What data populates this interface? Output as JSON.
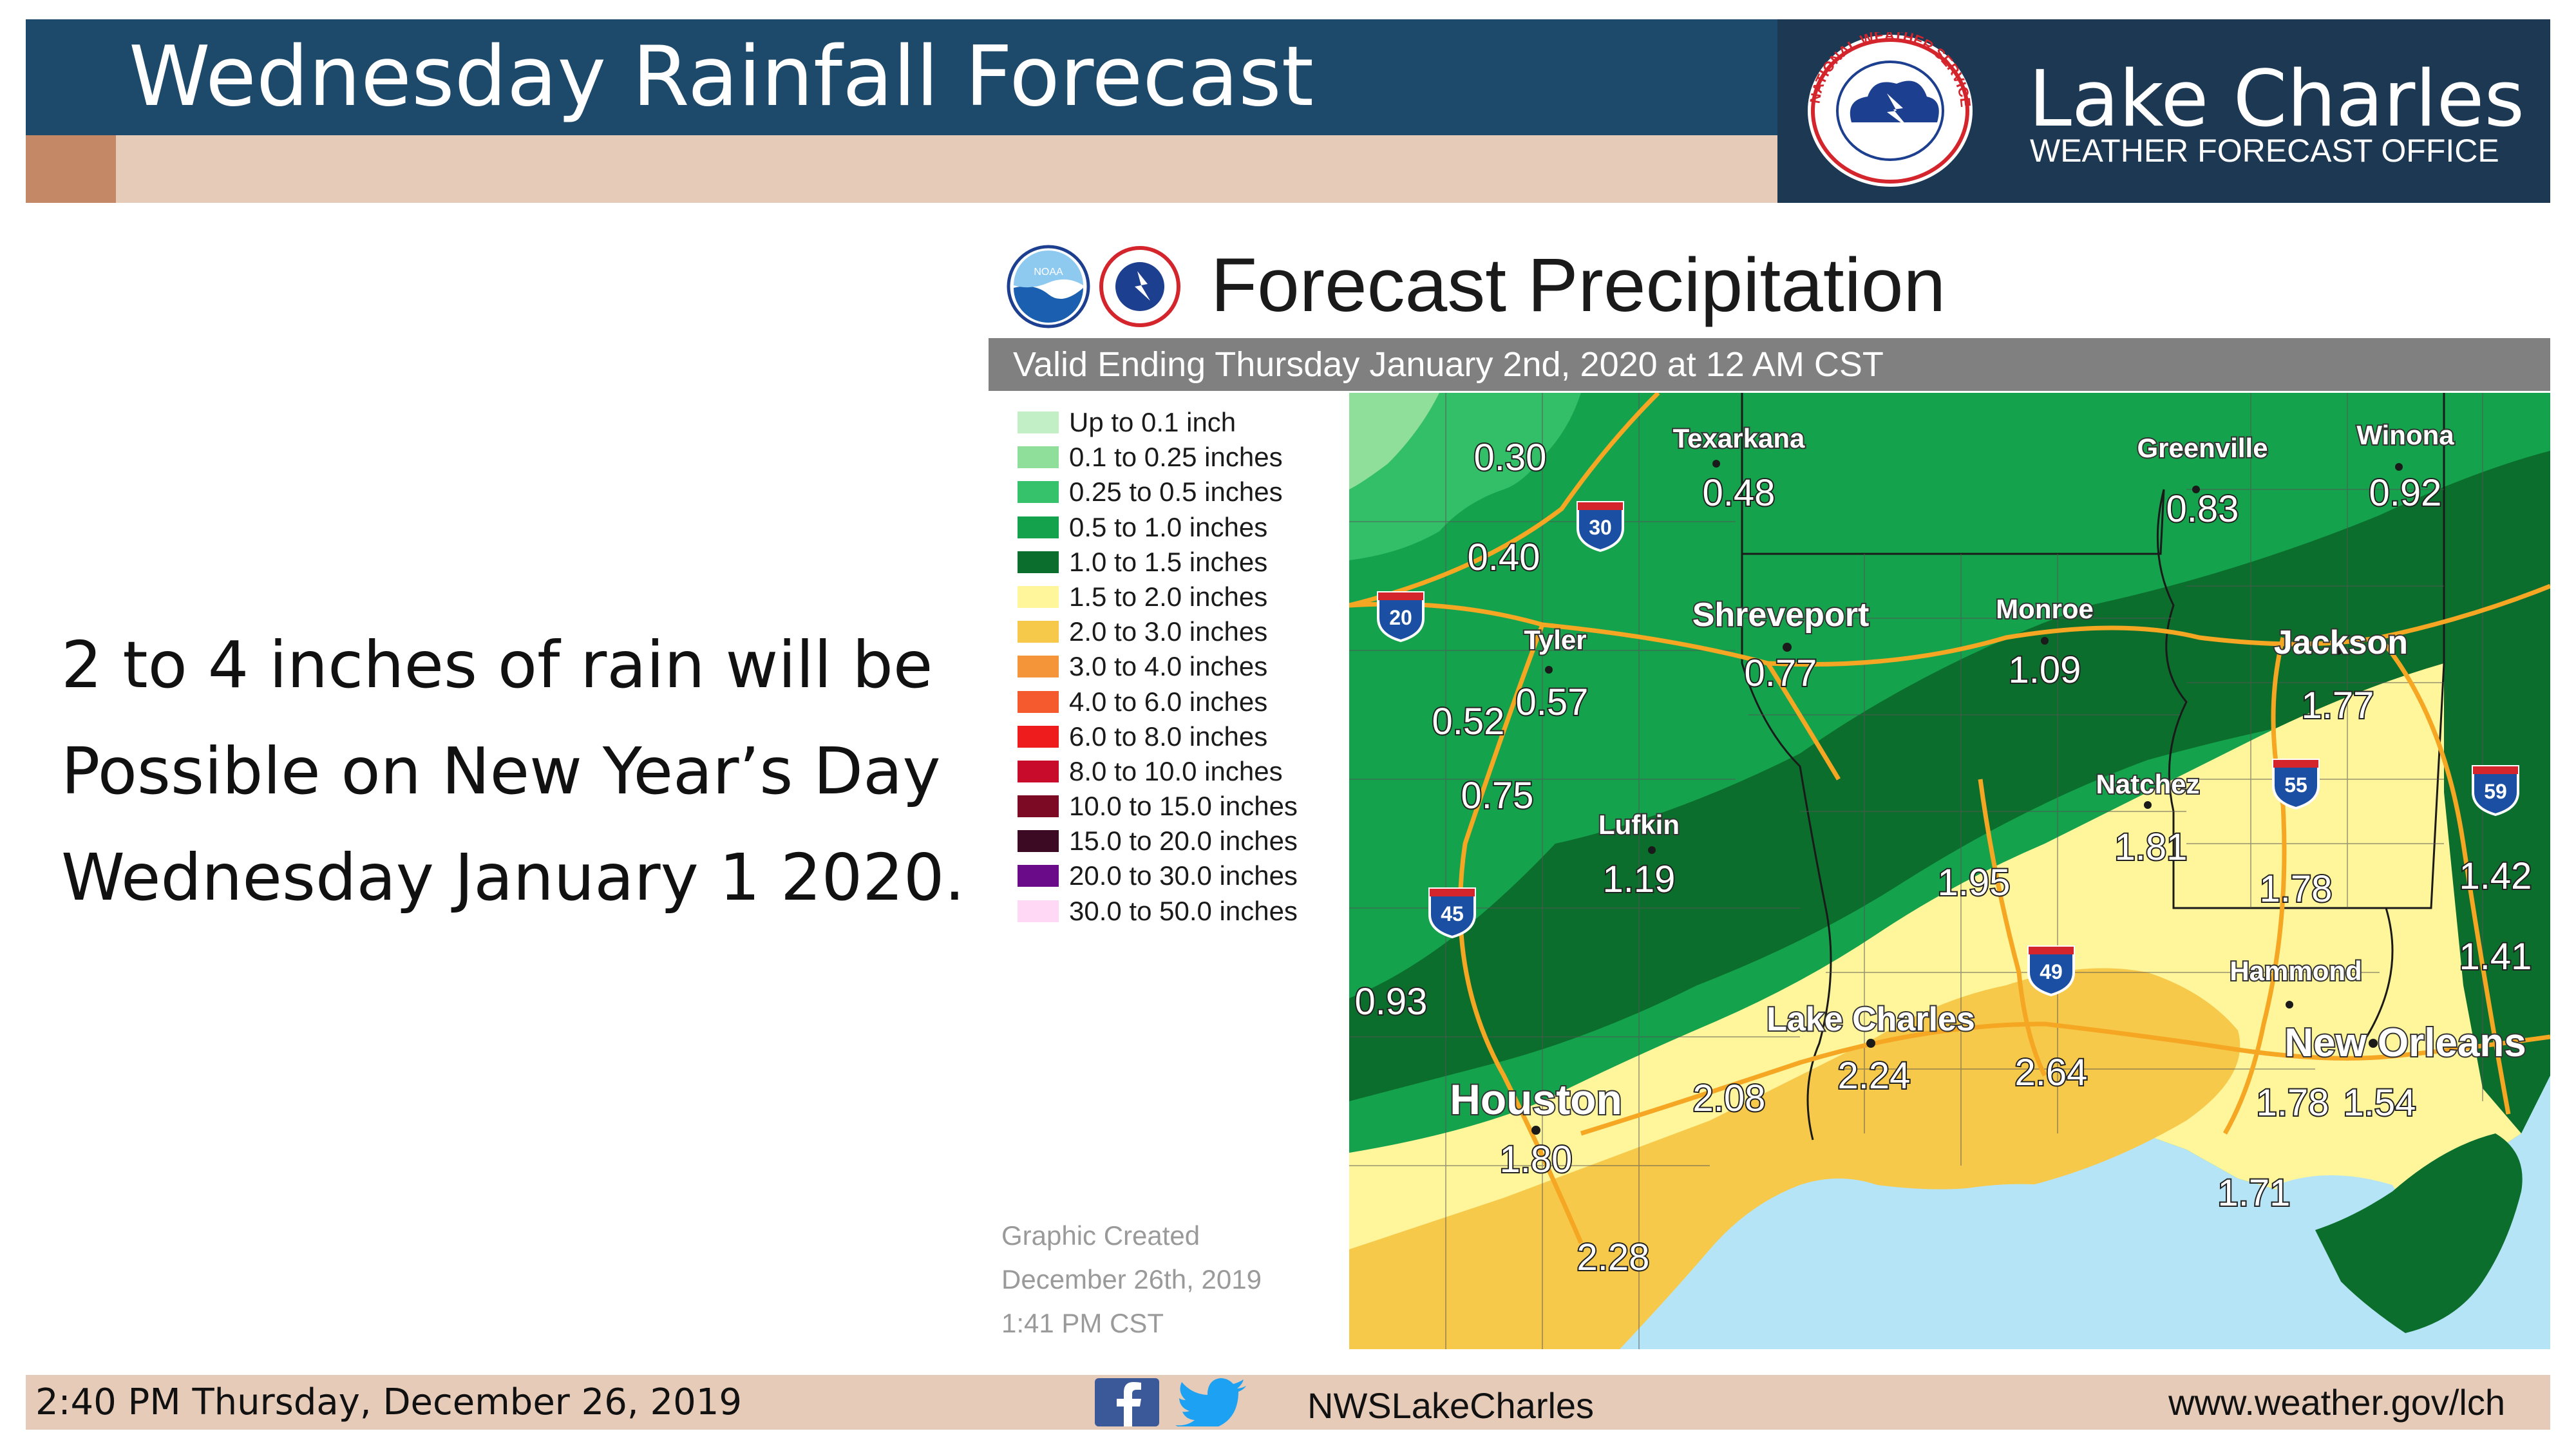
{
  "header": {
    "title": "Wednesday Rainfall Forecast",
    "office_name": "Lake Charles",
    "office_subtitle": "WEATHER FORECAST OFFICE",
    "seal_text": "NATIONAL WEATHER SERVICE"
  },
  "summary_lines": [
    "2 to 4 inches of rain will be",
    "Possible on New Year’s Day",
    "Wednesday January 1 2020."
  ],
  "graphic": {
    "title": "Forecast Precipitation",
    "valid": "Valid Ending Thursday January 2nd, 2020 at 12 AM CST",
    "noaa_logo_text": "NOAA",
    "created_lines": [
      "Graphic Created",
      "December 26th, 2019",
      "1:41 PM CST"
    ]
  },
  "legend": [
    {
      "label": "Up to 0.1 inch",
      "color": "#c3efc6"
    },
    {
      "label": "0.1 to 0.25 inches",
      "color": "#8fde99"
    },
    {
      "label": "0.25 to 0.5 inches",
      "color": "#35c26a"
    },
    {
      "label": "0.5 to 1.0 inches",
      "color": "#15a24c"
    },
    {
      "label": "1.0 to 1.5 inches",
      "color": "#0b6e2c"
    },
    {
      "label": "1.5 to 2.0 inches",
      "color": "#fff59a"
    },
    {
      "label": "2.0 to 3.0 inches",
      "color": "#f7c94a"
    },
    {
      "label": "3.0 to 4.0 inches",
      "color": "#f5953a"
    },
    {
      "label": "4.0 to 6.0 inches",
      "color": "#f45a2e"
    },
    {
      "label": "6.0 to 8.0 inches",
      "color": "#ee1c1c"
    },
    {
      "label": "8.0 to 10.0 inches",
      "color": "#c80a2b"
    },
    {
      "label": "10.0 to 15.0 inches",
      "color": "#7d0a25"
    },
    {
      "label": "15.0 to 20.0 inches",
      "color": "#3d0a24"
    },
    {
      "label": "20.0 to 30.0 inches",
      "color": "#6a0c8a"
    },
    {
      "label": "30.0 to 50.0 inches",
      "color": "#ffd8f6"
    }
  ],
  "map": {
    "cities": [
      {
        "name": "Texarkana"
      },
      {
        "name": "Greenville"
      },
      {
        "name": "Winona"
      },
      {
        "name": "Shreveport"
      },
      {
        "name": "Monroe"
      },
      {
        "name": "Jackson"
      },
      {
        "name": "Tyler"
      },
      {
        "name": "Natchez"
      },
      {
        "name": "Lufkin"
      },
      {
        "name": "Hammond"
      },
      {
        "name": "Lake Charles"
      },
      {
        "name": "New Orleans"
      },
      {
        "name": "Houston"
      }
    ],
    "amounts": [
      "0.30",
      "0.48",
      "0.83",
      "0.92",
      "0.40",
      "0.77",
      "1.09",
      "1.77",
      "0.52",
      "0.57",
      "0.75",
      "1.19",
      "1.95",
      "1.81",
      "1.78",
      "1.42",
      "1.41",
      "0.93",
      "2.08",
      "2.24",
      "2.64",
      "1.78",
      "1.54",
      "1.80",
      "1.71",
      "2.28"
    ],
    "interstates": [
      "30",
      "20",
      "55",
      "59",
      "45",
      "49"
    ]
  },
  "footer": {
    "timestamp": "2:40 PM Thursday, December 26, 2019",
    "social_handle": "NWSLakeCharles",
    "url": "www.weather.gov/lch"
  },
  "colors": {
    "header_blue": "#1d4a6b",
    "office_navy": "#1d3852",
    "tan_stripe": "#e6cbb8",
    "accent_rust": "#c58866",
    "water": "#b5e4f7",
    "highway": "#f5a623"
  }
}
